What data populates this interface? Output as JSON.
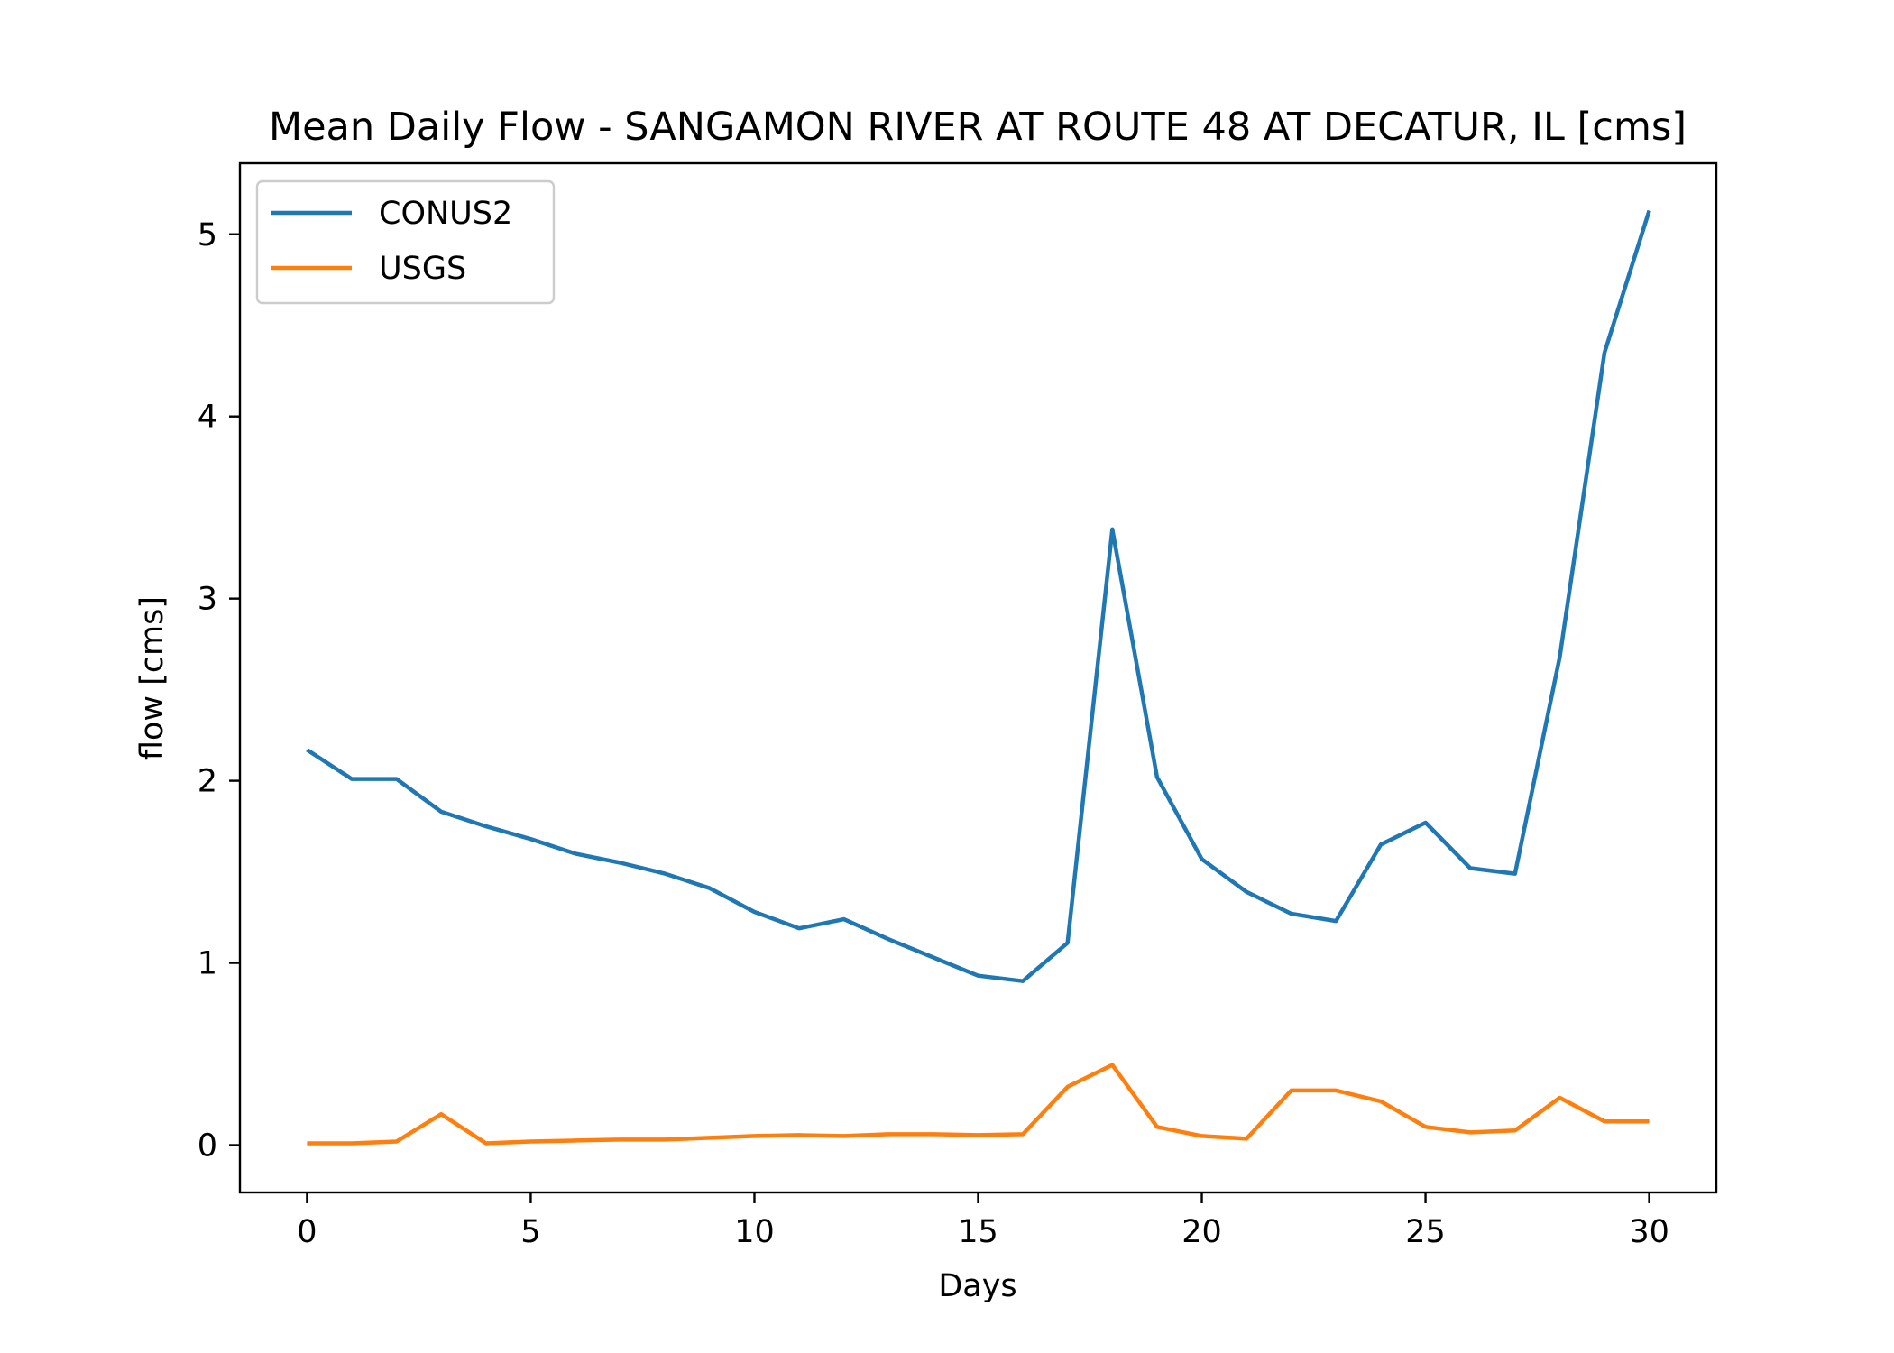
{
  "chart_data": {
    "type": "line",
    "title": "Mean Daily Flow - SANGAMON RIVER AT ROUTE 48 AT DECATUR, IL [cms]",
    "xlabel": "Days",
    "ylabel": "flow [cms]",
    "xlim": [
      -1.5,
      31.5
    ],
    "ylim": [
      -0.26,
      5.39
    ],
    "xticks": [
      "0",
      "5",
      "10",
      "15",
      "20",
      "25",
      "30"
    ],
    "yticks": [
      "0",
      "1",
      "2",
      "3",
      "4",
      "5"
    ],
    "grid": false,
    "legend_position": "top-left",
    "x": [
      0,
      1,
      2,
      3,
      4,
      5,
      6,
      7,
      8,
      9,
      10,
      11,
      12,
      13,
      14,
      15,
      16,
      17,
      18,
      19,
      20,
      21,
      22,
      23,
      24,
      25,
      26,
      27,
      28,
      29,
      30
    ],
    "series": [
      {
        "name": "CONUS2",
        "color": "#1f77b4",
        "values": [
          2.17,
          2.01,
          2.01,
          1.83,
          1.75,
          1.68,
          1.6,
          1.55,
          1.49,
          1.41,
          1.28,
          1.19,
          1.24,
          1.13,
          1.03,
          0.93,
          0.9,
          1.11,
          3.38,
          2.02,
          1.57,
          1.39,
          1.27,
          1.23,
          1.65,
          1.77,
          1.52,
          1.49,
          2.68,
          4.35,
          5.13
        ]
      },
      {
        "name": "USGS",
        "color": "#ff7f0e",
        "values": [
          0.01,
          0.01,
          0.02,
          0.17,
          0.01,
          0.02,
          0.025,
          0.03,
          0.03,
          0.04,
          0.05,
          0.055,
          0.05,
          0.06,
          0.06,
          0.055,
          0.06,
          0.32,
          0.44,
          0.1,
          0.05,
          0.035,
          0.3,
          0.3,
          0.24,
          0.1,
          0.07,
          0.08,
          0.26,
          0.13,
          0.13
        ]
      }
    ]
  }
}
